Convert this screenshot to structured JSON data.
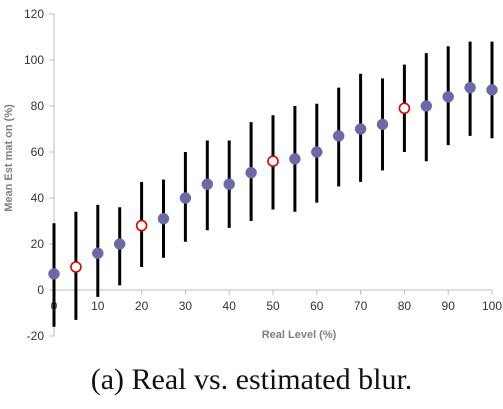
{
  "chart_data": {
    "type": "scatter",
    "xlabel": "Real Level (%)",
    "ylabel": "Mean Est mat on (%)",
    "xlim": [
      0,
      100
    ],
    "ylim": [
      -20,
      120
    ],
    "xticks": [
      0,
      10,
      20,
      30,
      40,
      50,
      60,
      70,
      80,
      90,
      100
    ],
    "yticks": [
      -20,
      0,
      20,
      40,
      60,
      80,
      100,
      120
    ],
    "grid": false,
    "colors": {
      "filled": "#6a6aa8",
      "hollow_edge": "#e00000",
      "error_bar": "#000000"
    },
    "points": [
      {
        "x": 0,
        "y": 7,
        "low": -16,
        "high": 29,
        "style": "filled"
      },
      {
        "x": 5,
        "y": 10,
        "low": -13,
        "high": 34,
        "style": "hollow"
      },
      {
        "x": 10,
        "y": 16,
        "low": -3,
        "high": 37,
        "style": "filled"
      },
      {
        "x": 15,
        "y": 20,
        "low": 2,
        "high": 36,
        "style": "filled"
      },
      {
        "x": 20,
        "y": 28,
        "low": 10,
        "high": 47,
        "style": "hollow"
      },
      {
        "x": 25,
        "y": 31,
        "low": 14,
        "high": 48,
        "style": "filled"
      },
      {
        "x": 30,
        "y": 40,
        "low": 21,
        "high": 60,
        "style": "filled"
      },
      {
        "x": 35,
        "y": 46,
        "low": 26,
        "high": 65,
        "style": "filled"
      },
      {
        "x": 40,
        "y": 46,
        "low": 27,
        "high": 65,
        "style": "filled"
      },
      {
        "x": 45,
        "y": 51,
        "low": 30,
        "high": 73,
        "style": "filled"
      },
      {
        "x": 50,
        "y": 56,
        "low": 35,
        "high": 76,
        "style": "hollow"
      },
      {
        "x": 55,
        "y": 57,
        "low": 34,
        "high": 80,
        "style": "filled"
      },
      {
        "x": 60,
        "y": 60,
        "low": 38,
        "high": 81,
        "style": "filled"
      },
      {
        "x": 65,
        "y": 67,
        "low": 45,
        "high": 88,
        "style": "filled"
      },
      {
        "x": 70,
        "y": 70,
        "low": 47,
        "high": 94,
        "style": "filled"
      },
      {
        "x": 75,
        "y": 72,
        "low": 52,
        "high": 92,
        "style": "filled"
      },
      {
        "x": 80,
        "y": 79,
        "low": 60,
        "high": 98,
        "style": "hollow"
      },
      {
        "x": 85,
        "y": 80,
        "low": 56,
        "high": 103,
        "style": "filled"
      },
      {
        "x": 90,
        "y": 84,
        "low": 63,
        "high": 106,
        "style": "filled"
      },
      {
        "x": 95,
        "y": 88,
        "low": 67,
        "high": 108,
        "style": "filled"
      },
      {
        "x": 100,
        "y": 87,
        "low": 66,
        "high": 108,
        "style": "filled"
      }
    ]
  },
  "caption": "(a) Real vs. estimated blur."
}
